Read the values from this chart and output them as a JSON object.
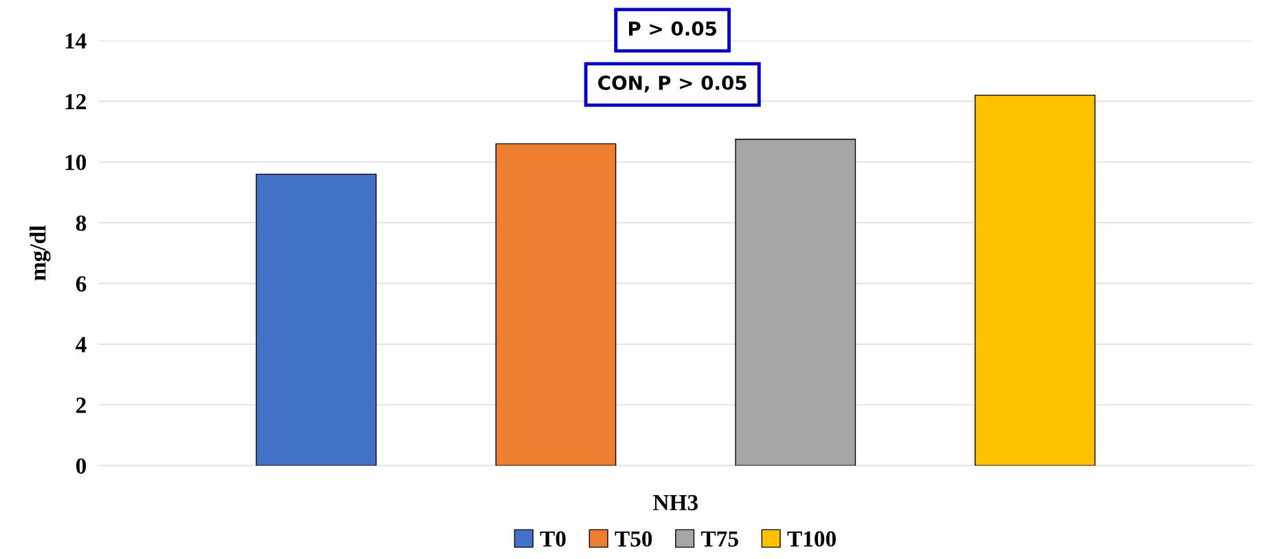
{
  "chart_data": {
    "type": "bar",
    "ylabel": "mg/dl",
    "categories": [
      "NH3"
    ],
    "series": [
      {
        "name": "T0",
        "color": "#4472c4",
        "values": [
          9.6
        ]
      },
      {
        "name": "T50",
        "color": "#ed7d31",
        "values": [
          10.6
        ]
      },
      {
        "name": "T75",
        "color": "#a5a5a5",
        "values": [
          10.75
        ]
      },
      {
        "name": "T100",
        "color": "#ffc000",
        "values": [
          12.2
        ]
      }
    ],
    "ylim": [
      0,
      14
    ],
    "yticks": [
      0,
      2,
      4,
      6,
      8,
      10,
      12,
      14
    ],
    "grid": "y",
    "legend": "bottom",
    "annotations": [
      "P > 0.05",
      "CON, P > 0.05"
    ]
  }
}
